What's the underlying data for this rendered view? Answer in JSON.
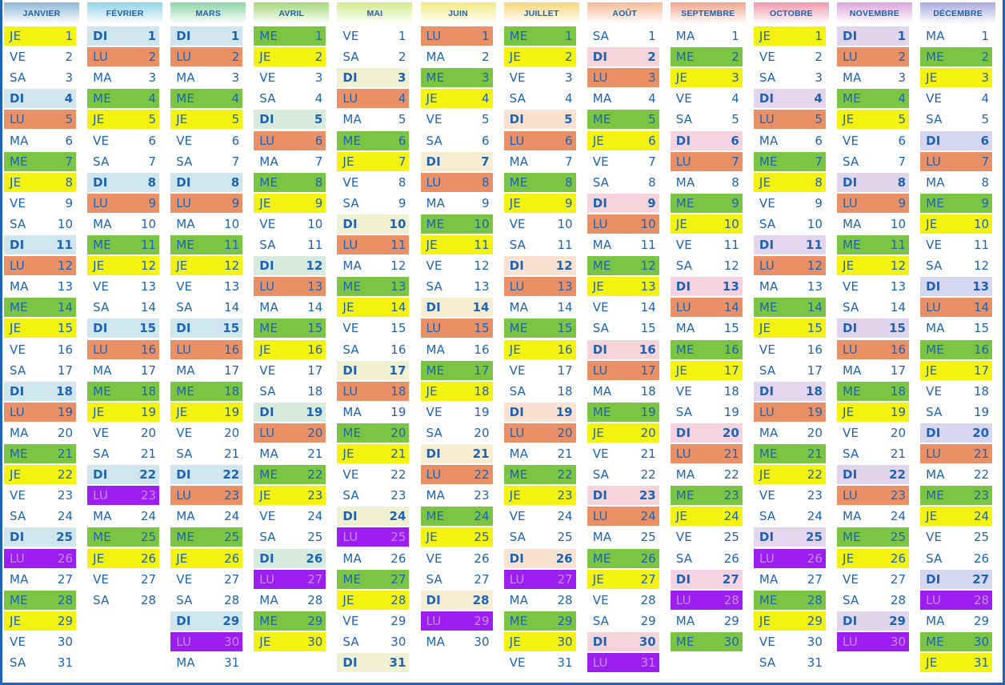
{
  "colors": {
    "ink": "#1e63b4",
    "dimanche": "#cfe6ef",
    "lundi": "#ea9066",
    "mercredi": "#7bc444",
    "jeudi": "#f3f210",
    "lundi_vacances": "#9c1ef0"
  },
  "months": [
    {
      "name": "JANVIER",
      "header_color": "#8fb7d6",
      "first_day": "JE",
      "days": 31,
      "tint": "#cfe6ef",
      "vac": [
        26
      ]
    },
    {
      "name": "FÉVRIER",
      "header_color": "#8fd3e6",
      "first_day": "DI",
      "days": 28,
      "tint": "#cfe6ef",
      "vac": [
        23
      ]
    },
    {
      "name": "MARS",
      "header_color": "#8ed3a8",
      "first_day": "DI",
      "days": 31,
      "tint": "#cfe6ef",
      "vac": [
        30
      ]
    },
    {
      "name": "AVRIL",
      "header_color": "#a6d67a",
      "first_day": "ME",
      "days": 30,
      "tint": "#d6eade",
      "vac": [
        27
      ]
    },
    {
      "name": "MAI",
      "header_color": "#d3ea8c",
      "first_day": "VE",
      "days": 31,
      "tint": "#f0f1d2",
      "vac": [
        25
      ]
    },
    {
      "name": "JUIN",
      "header_color": "#f3ea84",
      "first_day": "LU",
      "days": 30,
      "tint": "#f7edd2",
      "vac": [
        29
      ]
    },
    {
      "name": "JUILLET",
      "header_color": "#f7d77c",
      "first_day": "ME",
      "days": 31,
      "tint": "#f9e2d2",
      "vac": [
        27
      ]
    },
    {
      "name": "AOÛT",
      "header_color": "#f4bb96",
      "first_day": "SA",
      "days": 31,
      "tint": "#f4d4da",
      "vac": [
        31
      ]
    },
    {
      "name": "SEPTEMBRE",
      "header_color": "#f0a58e",
      "first_day": "MA",
      "days": 30,
      "tint": "#f5d2e0",
      "vac": [
        28
      ]
    },
    {
      "name": "OCTOBRE",
      "header_color": "#ef97ad",
      "first_day": "JE",
      "days": 31,
      "tint": "#e3d5ec",
      "vac": [
        26
      ]
    },
    {
      "name": "NOVEMBRE",
      "header_color": "#dca6dc",
      "first_day": "DI",
      "days": 30,
      "tint": "#e1d5ec",
      "vac": [
        30
      ]
    },
    {
      "name": "DÉCEMBRE",
      "header_color": "#a9a9df",
      "first_day": "MA",
      "days": 31,
      "tint": "#d6d6ee",
      "vac": [
        28
      ]
    }
  ],
  "weekday_abbrs": [
    "LU",
    "MA",
    "ME",
    "JE",
    "VE",
    "SA",
    "DI"
  ]
}
